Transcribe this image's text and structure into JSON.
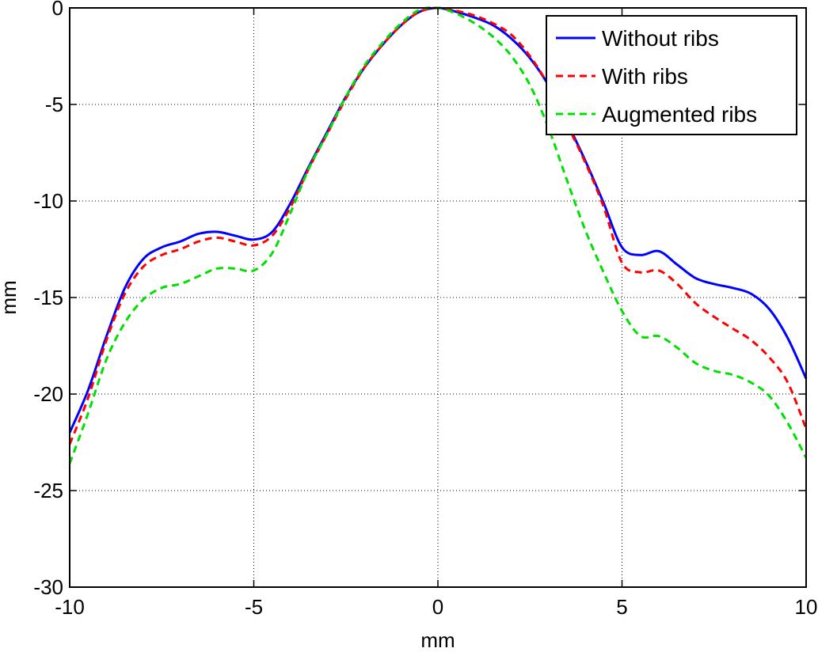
{
  "chart_data": {
    "type": "line",
    "xlabel": "mm",
    "ylabel": "mm",
    "xlim": [
      -10,
      10
    ],
    "ylim": [
      -30,
      0
    ],
    "xticks": [
      -10,
      -5,
      0,
      5,
      10
    ],
    "yticks": [
      0,
      -5,
      -10,
      -15,
      -20,
      -25,
      -30
    ],
    "grid": true,
    "legend_position": "top-right",
    "series": [
      {
        "name": "Without ribs",
        "color": "#0000ff",
        "style": "solid",
        "x": [
          -10,
          -9.5,
          -9,
          -8.5,
          -8,
          -7.5,
          -7,
          -6.5,
          -6,
          -5.5,
          -5,
          -4.5,
          -4,
          -3.5,
          -3,
          -2.5,
          -2,
          -1.5,
          -1,
          -0.5,
          0,
          0.5,
          1,
          1.5,
          2,
          2.5,
          3,
          3.5,
          4,
          4.5,
          5,
          5.5,
          6,
          6.5,
          7,
          7.5,
          8,
          8.5,
          9,
          9.5,
          10
        ],
        "y": [
          -22,
          -19.8,
          -17.0,
          -14.5,
          -13.0,
          -12.4,
          -12.1,
          -11.7,
          -11.6,
          -11.8,
          -12.0,
          -11.6,
          -10.1,
          -8.2,
          -6.4,
          -4.6,
          -3.1,
          -1.9,
          -0.9,
          -0.2,
          0,
          -0.2,
          -0.5,
          -0.9,
          -1.6,
          -2.6,
          -4.0,
          -5.9,
          -7.9,
          -10.1,
          -12.4,
          -12.8,
          -12.6,
          -13.3,
          -14.0,
          -14.3,
          -14.5,
          -14.8,
          -15.6,
          -17.1,
          -19.2
        ]
      },
      {
        "name": "With ribs",
        "color": "#ff0000",
        "style": "dashed",
        "x": [
          -10,
          -9.5,
          -9,
          -8.5,
          -8,
          -7.5,
          -7,
          -6.5,
          -6,
          -5.5,
          -5,
          -4.5,
          -4,
          -3.5,
          -3,
          -2.5,
          -2,
          -1.5,
          -1,
          -0.5,
          0,
          0.5,
          1,
          1.5,
          2,
          2.5,
          3,
          3.5,
          4,
          4.5,
          5,
          5.5,
          6,
          6.5,
          7,
          7.5,
          8,
          8.5,
          9,
          9.5,
          10
        ],
        "y": [
          -22.6,
          -20.2,
          -17.2,
          -14.8,
          -13.4,
          -12.8,
          -12.5,
          -12.1,
          -11.9,
          -12.1,
          -12.3,
          -11.8,
          -10.3,
          -8.3,
          -6.5,
          -4.7,
          -3.1,
          -1.9,
          -0.9,
          -0.2,
          0,
          -0.15,
          -0.4,
          -0.8,
          -1.4,
          -2.5,
          -4.0,
          -6.0,
          -8.0,
          -10.3,
          -13.2,
          -13.7,
          -13.6,
          -14.3,
          -15.3,
          -16.0,
          -16.6,
          -17.2,
          -18.1,
          -19.4,
          -21.8
        ]
      },
      {
        "name": "Augmented ribs",
        "color": "#00e000",
        "style": "dashed",
        "x": [
          -10,
          -9.5,
          -9,
          -8.5,
          -8,
          -7.5,
          -7,
          -6.5,
          -6,
          -5.5,
          -5,
          -4.5,
          -4,
          -3.5,
          -3,
          -2.5,
          -2,
          -1.5,
          -1,
          -0.5,
          0,
          0.5,
          1,
          1.5,
          2,
          2.5,
          3,
          3.5,
          4,
          4.5,
          5,
          5.5,
          6,
          6.5,
          7,
          7.5,
          8,
          8.5,
          9,
          9.5,
          10
        ],
        "y": [
          -23.6,
          -21.0,
          -18.2,
          -16.3,
          -15.1,
          -14.5,
          -14.3,
          -13.9,
          -13.5,
          -13.5,
          -13.6,
          -12.7,
          -10.6,
          -8.3,
          -6.5,
          -4.6,
          -3.0,
          -1.8,
          -0.8,
          -0.1,
          0,
          -0.3,
          -0.8,
          -1.5,
          -2.5,
          -4.0,
          -6.2,
          -8.9,
          -11.5,
          -13.7,
          -15.7,
          -17.0,
          -17.0,
          -17.6,
          -18.4,
          -18.8,
          -19.0,
          -19.4,
          -20.1,
          -21.5,
          -23.3
        ]
      }
    ]
  }
}
